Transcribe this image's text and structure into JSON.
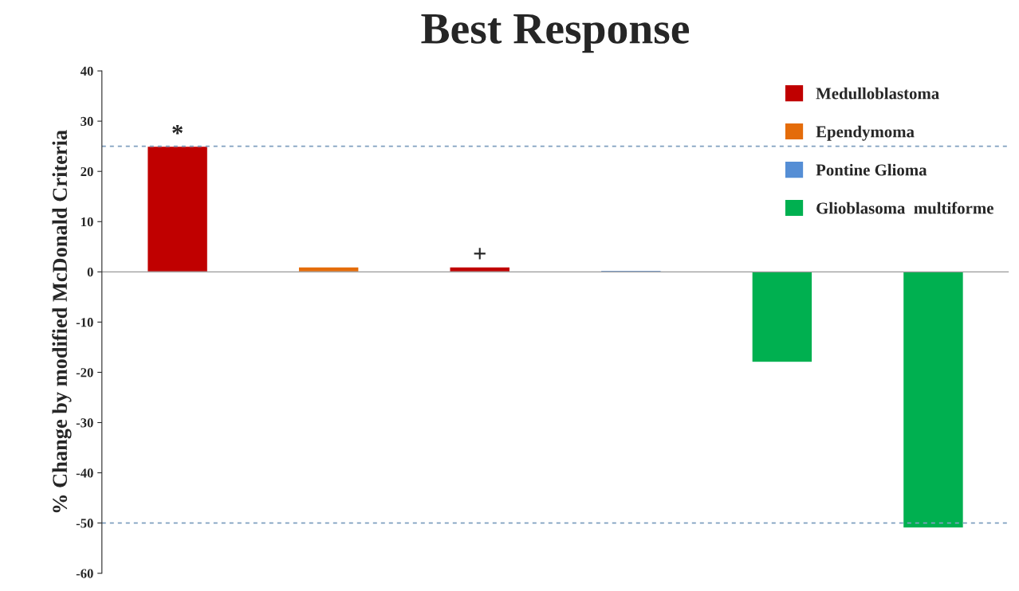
{
  "chart_data": {
    "type": "bar",
    "title": "Best Response",
    "ylabel": "% Change by modified McDonald Criteria",
    "categories": [
      null,
      null,
      null,
      null,
      null,
      null
    ],
    "series": [
      {
        "name": "Medulloblastoma",
        "color": "#c00000",
        "values": [
          25,
          null,
          1,
          null,
          null,
          null
        ]
      },
      {
        "name": "Ependymoma",
        "color": "#e46c0a",
        "values": [
          null,
          1,
          null,
          null,
          null,
          null
        ]
      },
      {
        "name": "Pontine Glioma",
        "color": "#558ed5",
        "values": [
          null,
          null,
          null,
          0.3,
          null,
          null
        ]
      },
      {
        "name": "Glioblasoma  multiforme",
        "color": "#00b050",
        "values": [
          null,
          null,
          null,
          null,
          -18,
          -51
        ]
      }
    ],
    "ylim": [
      -60,
      40
    ],
    "yticks": [
      -60,
      -50,
      -40,
      -30,
      -20,
      -10,
      0,
      10,
      20,
      30,
      40
    ],
    "ref_lines": [
      {
        "axis": "y",
        "value": 25,
        "color": "#7f9fbf",
        "line_style": "dashed"
      },
      {
        "axis": "y",
        "value": -50,
        "color": "#7f9fbf",
        "line_style": "dashed"
      }
    ],
    "annotations": [
      {
        "text": "*",
        "y": 25
      },
      {
        "text": "+",
        "y": 1
      }
    ],
    "legend": "top right",
    "grid": false
  }
}
